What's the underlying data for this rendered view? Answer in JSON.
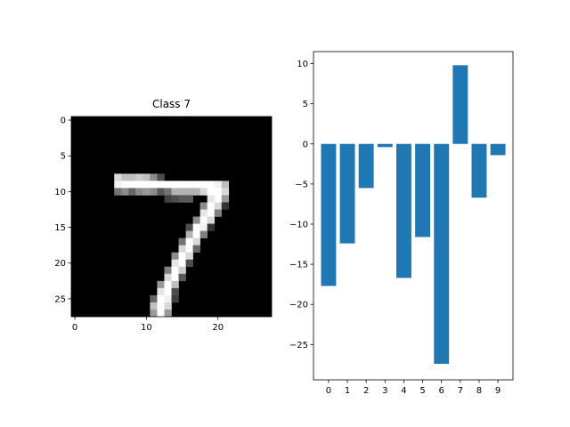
{
  "chart_data": [
    {
      "type": "heatmap",
      "title": "Class 7",
      "colormap": "gray",
      "rows": 28,
      "cols": 28,
      "x_ticks": [
        0,
        10,
        20
      ],
      "y_ticks": [
        0,
        5,
        10,
        15,
        20,
        25
      ],
      "stroke_pixels": [
        [
          8,
          6,
          0.85
        ],
        [
          8,
          7,
          0.75
        ],
        [
          8,
          8,
          0.75
        ],
        [
          8,
          9,
          0.8
        ],
        [
          8,
          10,
          0.75
        ],
        [
          8,
          11,
          0.55
        ],
        [
          8,
          12,
          0.3
        ],
        [
          9,
          6,
          0.95
        ],
        [
          9,
          7,
          1
        ],
        [
          9,
          8,
          1
        ],
        [
          9,
          9,
          1
        ],
        [
          9,
          10,
          1
        ],
        [
          9,
          11,
          1
        ],
        [
          9,
          12,
          1
        ],
        [
          9,
          13,
          1
        ],
        [
          9,
          14,
          1
        ],
        [
          9,
          15,
          1
        ],
        [
          9,
          16,
          1
        ],
        [
          9,
          17,
          1
        ],
        [
          9,
          18,
          1
        ],
        [
          9,
          19,
          1
        ],
        [
          9,
          20,
          0.95
        ],
        [
          9,
          21,
          0.75
        ],
        [
          10,
          6,
          0.45
        ],
        [
          10,
          7,
          0.55
        ],
        [
          10,
          8,
          0.4
        ],
        [
          10,
          9,
          0.55
        ],
        [
          10,
          10,
          0.6
        ],
        [
          10,
          11,
          0.55
        ],
        [
          10,
          12,
          0.35
        ],
        [
          10,
          13,
          0.45
        ],
        [
          10,
          14,
          0.7
        ],
        [
          10,
          15,
          0.7
        ],
        [
          10,
          16,
          0.7
        ],
        [
          10,
          17,
          0.7
        ],
        [
          10,
          18,
          0.85
        ],
        [
          10,
          19,
          1
        ],
        [
          10,
          20,
          1
        ],
        [
          10,
          21,
          0.85
        ],
        [
          11,
          13,
          0.25
        ],
        [
          11,
          14,
          0.3
        ],
        [
          11,
          15,
          0.35
        ],
        [
          11,
          16,
          0.35
        ],
        [
          11,
          19,
          0.9
        ],
        [
          11,
          20,
          1
        ],
        [
          11,
          21,
          0.6
        ],
        [
          12,
          18,
          0.55
        ],
        [
          12,
          19,
          1
        ],
        [
          12,
          20,
          0.85
        ],
        [
          12,
          21,
          0.2
        ],
        [
          13,
          18,
          0.9
        ],
        [
          13,
          19,
          1
        ],
        [
          13,
          20,
          0.5
        ],
        [
          14,
          17,
          0.55
        ],
        [
          14,
          18,
          1
        ],
        [
          14,
          19,
          0.85
        ],
        [
          15,
          16,
          0.3
        ],
        [
          15,
          17,
          1
        ],
        [
          15,
          18,
          0.95
        ],
        [
          15,
          19,
          0.2
        ],
        [
          16,
          16,
          0.7
        ],
        [
          16,
          17,
          1
        ],
        [
          16,
          18,
          0.5
        ],
        [
          17,
          15,
          0.45
        ],
        [
          17,
          16,
          1
        ],
        [
          17,
          17,
          0.85
        ],
        [
          18,
          15,
          0.85
        ],
        [
          18,
          16,
          1
        ],
        [
          18,
          17,
          0.4
        ],
        [
          19,
          14,
          0.55
        ],
        [
          19,
          15,
          1
        ],
        [
          19,
          16,
          0.85
        ],
        [
          20,
          14,
          0.9
        ],
        [
          20,
          15,
          1
        ],
        [
          20,
          16,
          0.3
        ],
        [
          21,
          13,
          0.5
        ],
        [
          21,
          14,
          1
        ],
        [
          21,
          15,
          0.8
        ],
        [
          22,
          13,
          0.85
        ],
        [
          22,
          14,
          1
        ],
        [
          22,
          15,
          0.35
        ],
        [
          23,
          12,
          0.6
        ],
        [
          23,
          13,
          1
        ],
        [
          23,
          14,
          0.75
        ],
        [
          24,
          12,
          0.9
        ],
        [
          24,
          13,
          1
        ],
        [
          24,
          14,
          0.3
        ],
        [
          25,
          11,
          0.4
        ],
        [
          25,
          12,
          1
        ],
        [
          25,
          13,
          0.95
        ],
        [
          25,
          14,
          0.25
        ],
        [
          26,
          11,
          0.75
        ],
        [
          26,
          12,
          1
        ],
        [
          26,
          13,
          0.85
        ],
        [
          27,
          11,
          0.6
        ],
        [
          27,
          12,
          1
        ],
        [
          27,
          13,
          0.6
        ]
      ]
    },
    {
      "type": "bar",
      "title": "",
      "xlabel": "",
      "ylabel": "",
      "categories": [
        "0",
        "1",
        "2",
        "3",
        "4",
        "5",
        "6",
        "7",
        "8",
        "9"
      ],
      "values": [
        -17.7,
        -12.4,
        -5.5,
        -0.4,
        -16.7,
        -11.6,
        -27.4,
        9.8,
        -6.7,
        -1.4
      ],
      "ylim": [
        -29.4,
        11.5
      ],
      "yticks": [
        10,
        5,
        0,
        -5,
        -10,
        -15,
        -20,
        -25
      ],
      "bar_color": "#1f77b4",
      "grid": false
    }
  ]
}
